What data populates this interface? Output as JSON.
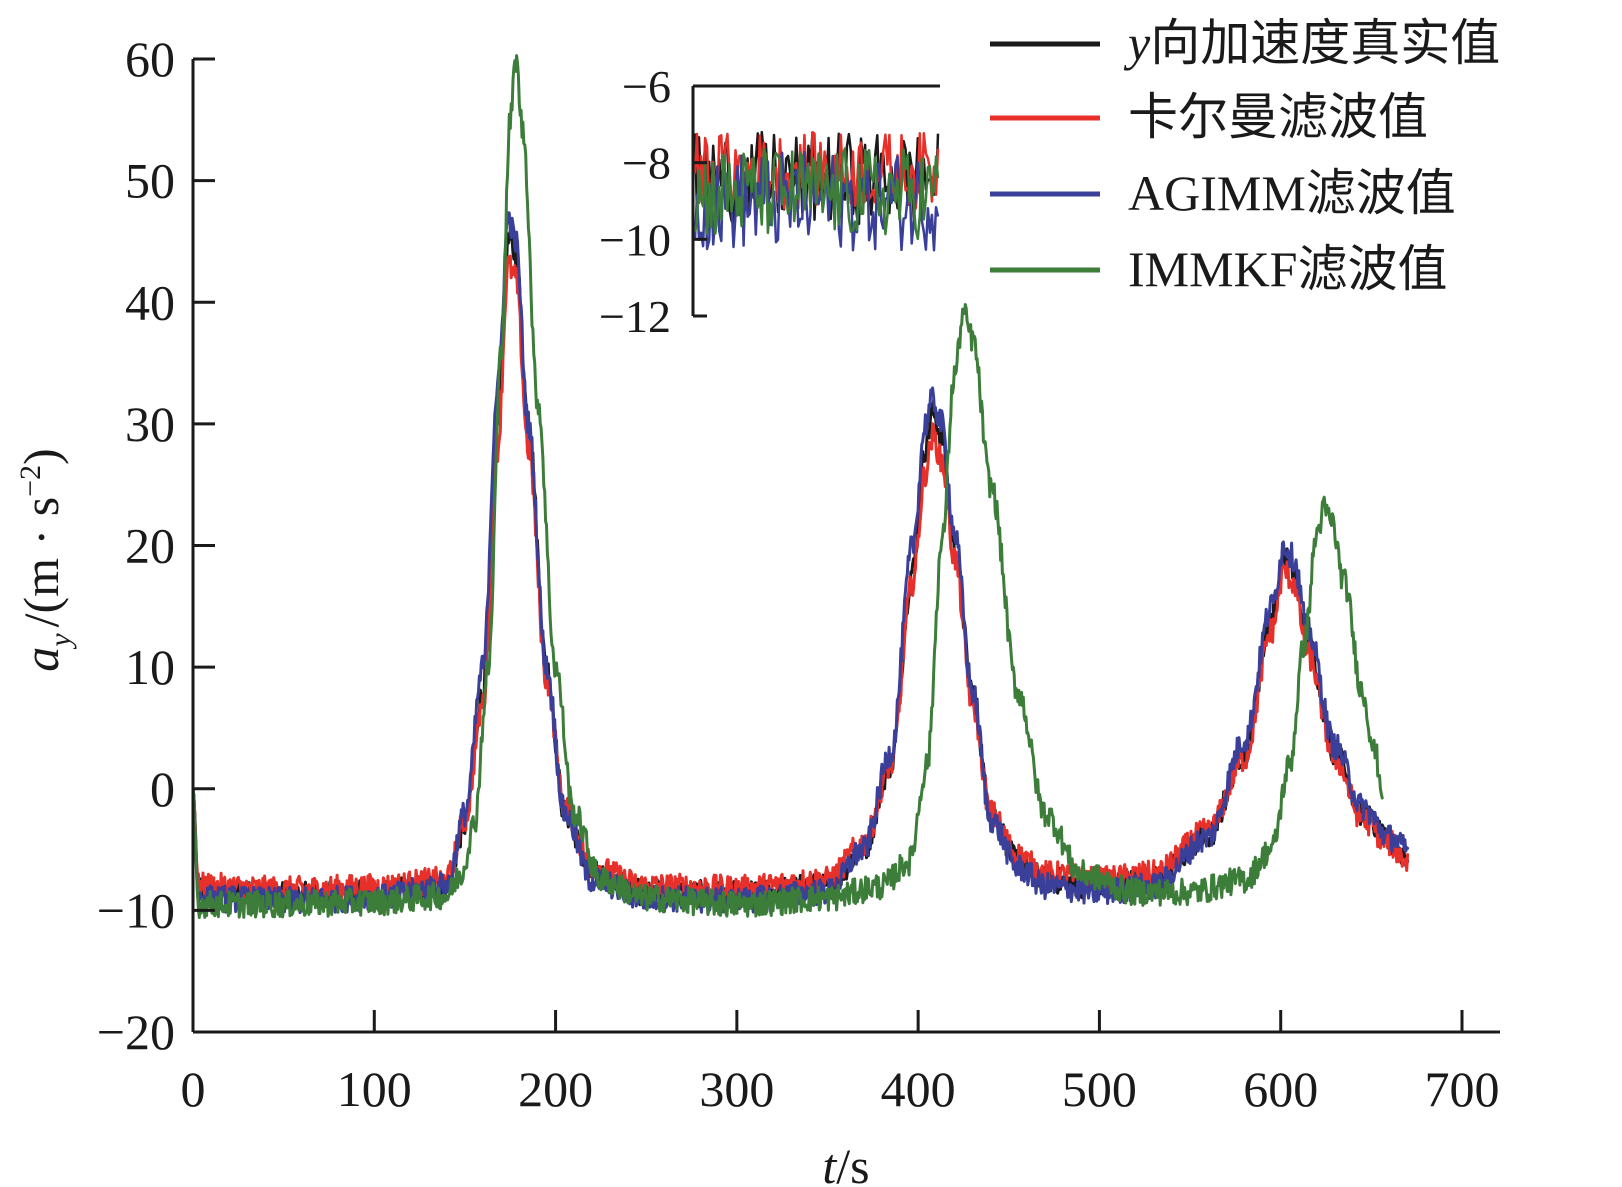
{
  "chart_data": {
    "type": "line",
    "xlabel": {
      "var": "t",
      "unit": "/s"
    },
    "ylabel": {
      "var": "a",
      "sub": "y",
      "unit": "/(m · s",
      "sup": "−2",
      "close": ")"
    },
    "xlim": [
      0,
      700
    ],
    "ylim": [
      -20,
      60
    ],
    "xticks": [
      0,
      100,
      200,
      300,
      400,
      500,
      600,
      700
    ],
    "yticks": [
      -20,
      -10,
      0,
      10,
      20,
      30,
      40,
      50,
      60
    ],
    "xtick_labels": [
      "0",
      "100",
      "200",
      "300",
      "400",
      "500",
      "600",
      "700"
    ],
    "ytick_labels": [
      "−20",
      "−10",
      "0",
      "10",
      "20",
      "30",
      "40",
      "50",
      "60"
    ],
    "legend_position": "top-right",
    "x_end": 670,
    "series": [
      {
        "name": "y向加速度真实值",
        "name_italic": "y",
        "name_rest": "向加速度真实值",
        "color": "#1a1a1a",
        "points": [
          [
            0,
            0
          ],
          [
            3,
            -8.5
          ],
          [
            50,
            -8.8
          ],
          [
            100,
            -8.6
          ],
          [
            140,
            -8
          ],
          [
            150,
            -3
          ],
          [
            160,
            8
          ],
          [
            168,
            30
          ],
          [
            174,
            45
          ],
          [
            178,
            44
          ],
          [
            185,
            30
          ],
          [
            195,
            10
          ],
          [
            205,
            -2
          ],
          [
            220,
            -7
          ],
          [
            250,
            -8.5
          ],
          [
            300,
            -8.7
          ],
          [
            350,
            -8
          ],
          [
            370,
            -5
          ],
          [
            385,
            2
          ],
          [
            397,
            18
          ],
          [
            404,
            28
          ],
          [
            408,
            31
          ],
          [
            413,
            29
          ],
          [
            420,
            20
          ],
          [
            430,
            8
          ],
          [
            440,
            -2
          ],
          [
            455,
            -6
          ],
          [
            470,
            -7.5
          ],
          [
            500,
            -8
          ],
          [
            530,
            -7.5
          ],
          [
            560,
            -4
          ],
          [
            580,
            3
          ],
          [
            595,
            14
          ],
          [
            602,
            19
          ],
          [
            607,
            18
          ],
          [
            615,
            12
          ],
          [
            630,
            3
          ],
          [
            645,
            -2
          ],
          [
            660,
            -4.5
          ],
          [
            670,
            -5.5
          ]
        ]
      },
      {
        "name": "卡尔曼滤波值",
        "color": "#e8302a",
        "points": [
          [
            0,
            0
          ],
          [
            3,
            -8
          ],
          [
            50,
            -8.3
          ],
          [
            100,
            -8.1
          ],
          [
            140,
            -7.5
          ],
          [
            150,
            -2.5
          ],
          [
            160,
            7
          ],
          [
            168,
            28
          ],
          [
            174,
            43
          ],
          [
            178,
            42
          ],
          [
            185,
            28
          ],
          [
            195,
            9
          ],
          [
            205,
            -1.5
          ],
          [
            220,
            -6.5
          ],
          [
            250,
            -8
          ],
          [
            300,
            -8.2
          ],
          [
            350,
            -7.5
          ],
          [
            370,
            -4.5
          ],
          [
            385,
            2
          ],
          [
            397,
            17
          ],
          [
            404,
            26
          ],
          [
            408,
            29
          ],
          [
            413,
            27
          ],
          [
            420,
            19
          ],
          [
            430,
            7
          ],
          [
            440,
            -2
          ],
          [
            455,
            -5.5
          ],
          [
            470,
            -7
          ],
          [
            500,
            -7.5
          ],
          [
            530,
            -7
          ],
          [
            560,
            -3.5
          ],
          [
            580,
            2.5
          ],
          [
            595,
            13
          ],
          [
            602,
            18
          ],
          [
            607,
            17
          ],
          [
            615,
            11
          ],
          [
            630,
            2.5
          ],
          [
            645,
            -2.5
          ],
          [
            660,
            -4.5
          ],
          [
            670,
            -6
          ]
        ]
      },
      {
        "name": "AGIMM滤波值",
        "color": "#3a3f9a",
        "points": [
          [
            0,
            0
          ],
          [
            3,
            -9
          ],
          [
            50,
            -9.2
          ],
          [
            100,
            -9
          ],
          [
            140,
            -8
          ],
          [
            150,
            -2
          ],
          [
            160,
            10
          ],
          [
            168,
            33
          ],
          [
            174,
            47
          ],
          [
            178,
            45
          ],
          [
            185,
            30
          ],
          [
            195,
            10
          ],
          [
            205,
            -2
          ],
          [
            220,
            -7.5
          ],
          [
            250,
            -9
          ],
          [
            300,
            -9.2
          ],
          [
            350,
            -8.5
          ],
          [
            370,
            -5
          ],
          [
            385,
            3
          ],
          [
            397,
            20
          ],
          [
            404,
            30
          ],
          [
            408,
            32
          ],
          [
            413,
            30
          ],
          [
            420,
            21
          ],
          [
            430,
            8
          ],
          [
            440,
            -2.5
          ],
          [
            455,
            -6.5
          ],
          [
            470,
            -8
          ],
          [
            500,
            -8.5
          ],
          [
            530,
            -8
          ],
          [
            560,
            -4
          ],
          [
            580,
            4
          ],
          [
            595,
            15
          ],
          [
            602,
            20
          ],
          [
            607,
            19
          ],
          [
            615,
            13
          ],
          [
            630,
            3.5
          ],
          [
            645,
            -1.5
          ],
          [
            660,
            -4
          ],
          [
            670,
            -5
          ]
        ]
      },
      {
        "name": "IMMKF滤波值",
        "color": "#3d7d3a",
        "points": [
          [
            0,
            0
          ],
          [
            3,
            -9.5
          ],
          [
            50,
            -9.5
          ],
          [
            100,
            -9.3
          ],
          [
            140,
            -8.8
          ],
          [
            148,
            -7
          ],
          [
            155,
            -3
          ],
          [
            163,
            10
          ],
          [
            170,
            36
          ],
          [
            175,
            55
          ],
          [
            178,
            60
          ],
          [
            182,
            54
          ],
          [
            190,
            32
          ],
          [
            200,
            10
          ],
          [
            210,
            -2
          ],
          [
            225,
            -7.5
          ],
          [
            250,
            -9
          ],
          [
            300,
            -9.5
          ],
          [
            350,
            -9
          ],
          [
            380,
            -8
          ],
          [
            395,
            -6
          ],
          [
            405,
            2
          ],
          [
            413,
            20
          ],
          [
            420,
            34
          ],
          [
            425,
            39
          ],
          [
            430,
            37
          ],
          [
            440,
            25
          ],
          [
            455,
            8
          ],
          [
            470,
            -2
          ],
          [
            490,
            -7
          ],
          [
            520,
            -8.5
          ],
          [
            550,
            -8.5
          ],
          [
            580,
            -7.5
          ],
          [
            595,
            -5
          ],
          [
            605,
            2
          ],
          [
            613,
            12
          ],
          [
            620,
            21
          ],
          [
            624,
            23
          ],
          [
            628,
            22
          ],
          [
            635,
            17
          ],
          [
            645,
            8
          ],
          [
            652,
            3
          ],
          [
            656,
            0
          ]
        ]
      }
    ],
    "inset": {
      "ylim": [
        -12,
        -6
      ],
      "yticks": [
        -6,
        -8,
        -10,
        -12
      ],
      "ytick_labels": [
        "−6",
        "−8",
        "−10",
        "−12"
      ],
      "series_center": [
        -8.4,
        -8.2,
        -9.0,
        -8.8
      ],
      "series_amplitude": [
        1.2,
        1.0,
        1.3,
        1.2
      ]
    }
  }
}
